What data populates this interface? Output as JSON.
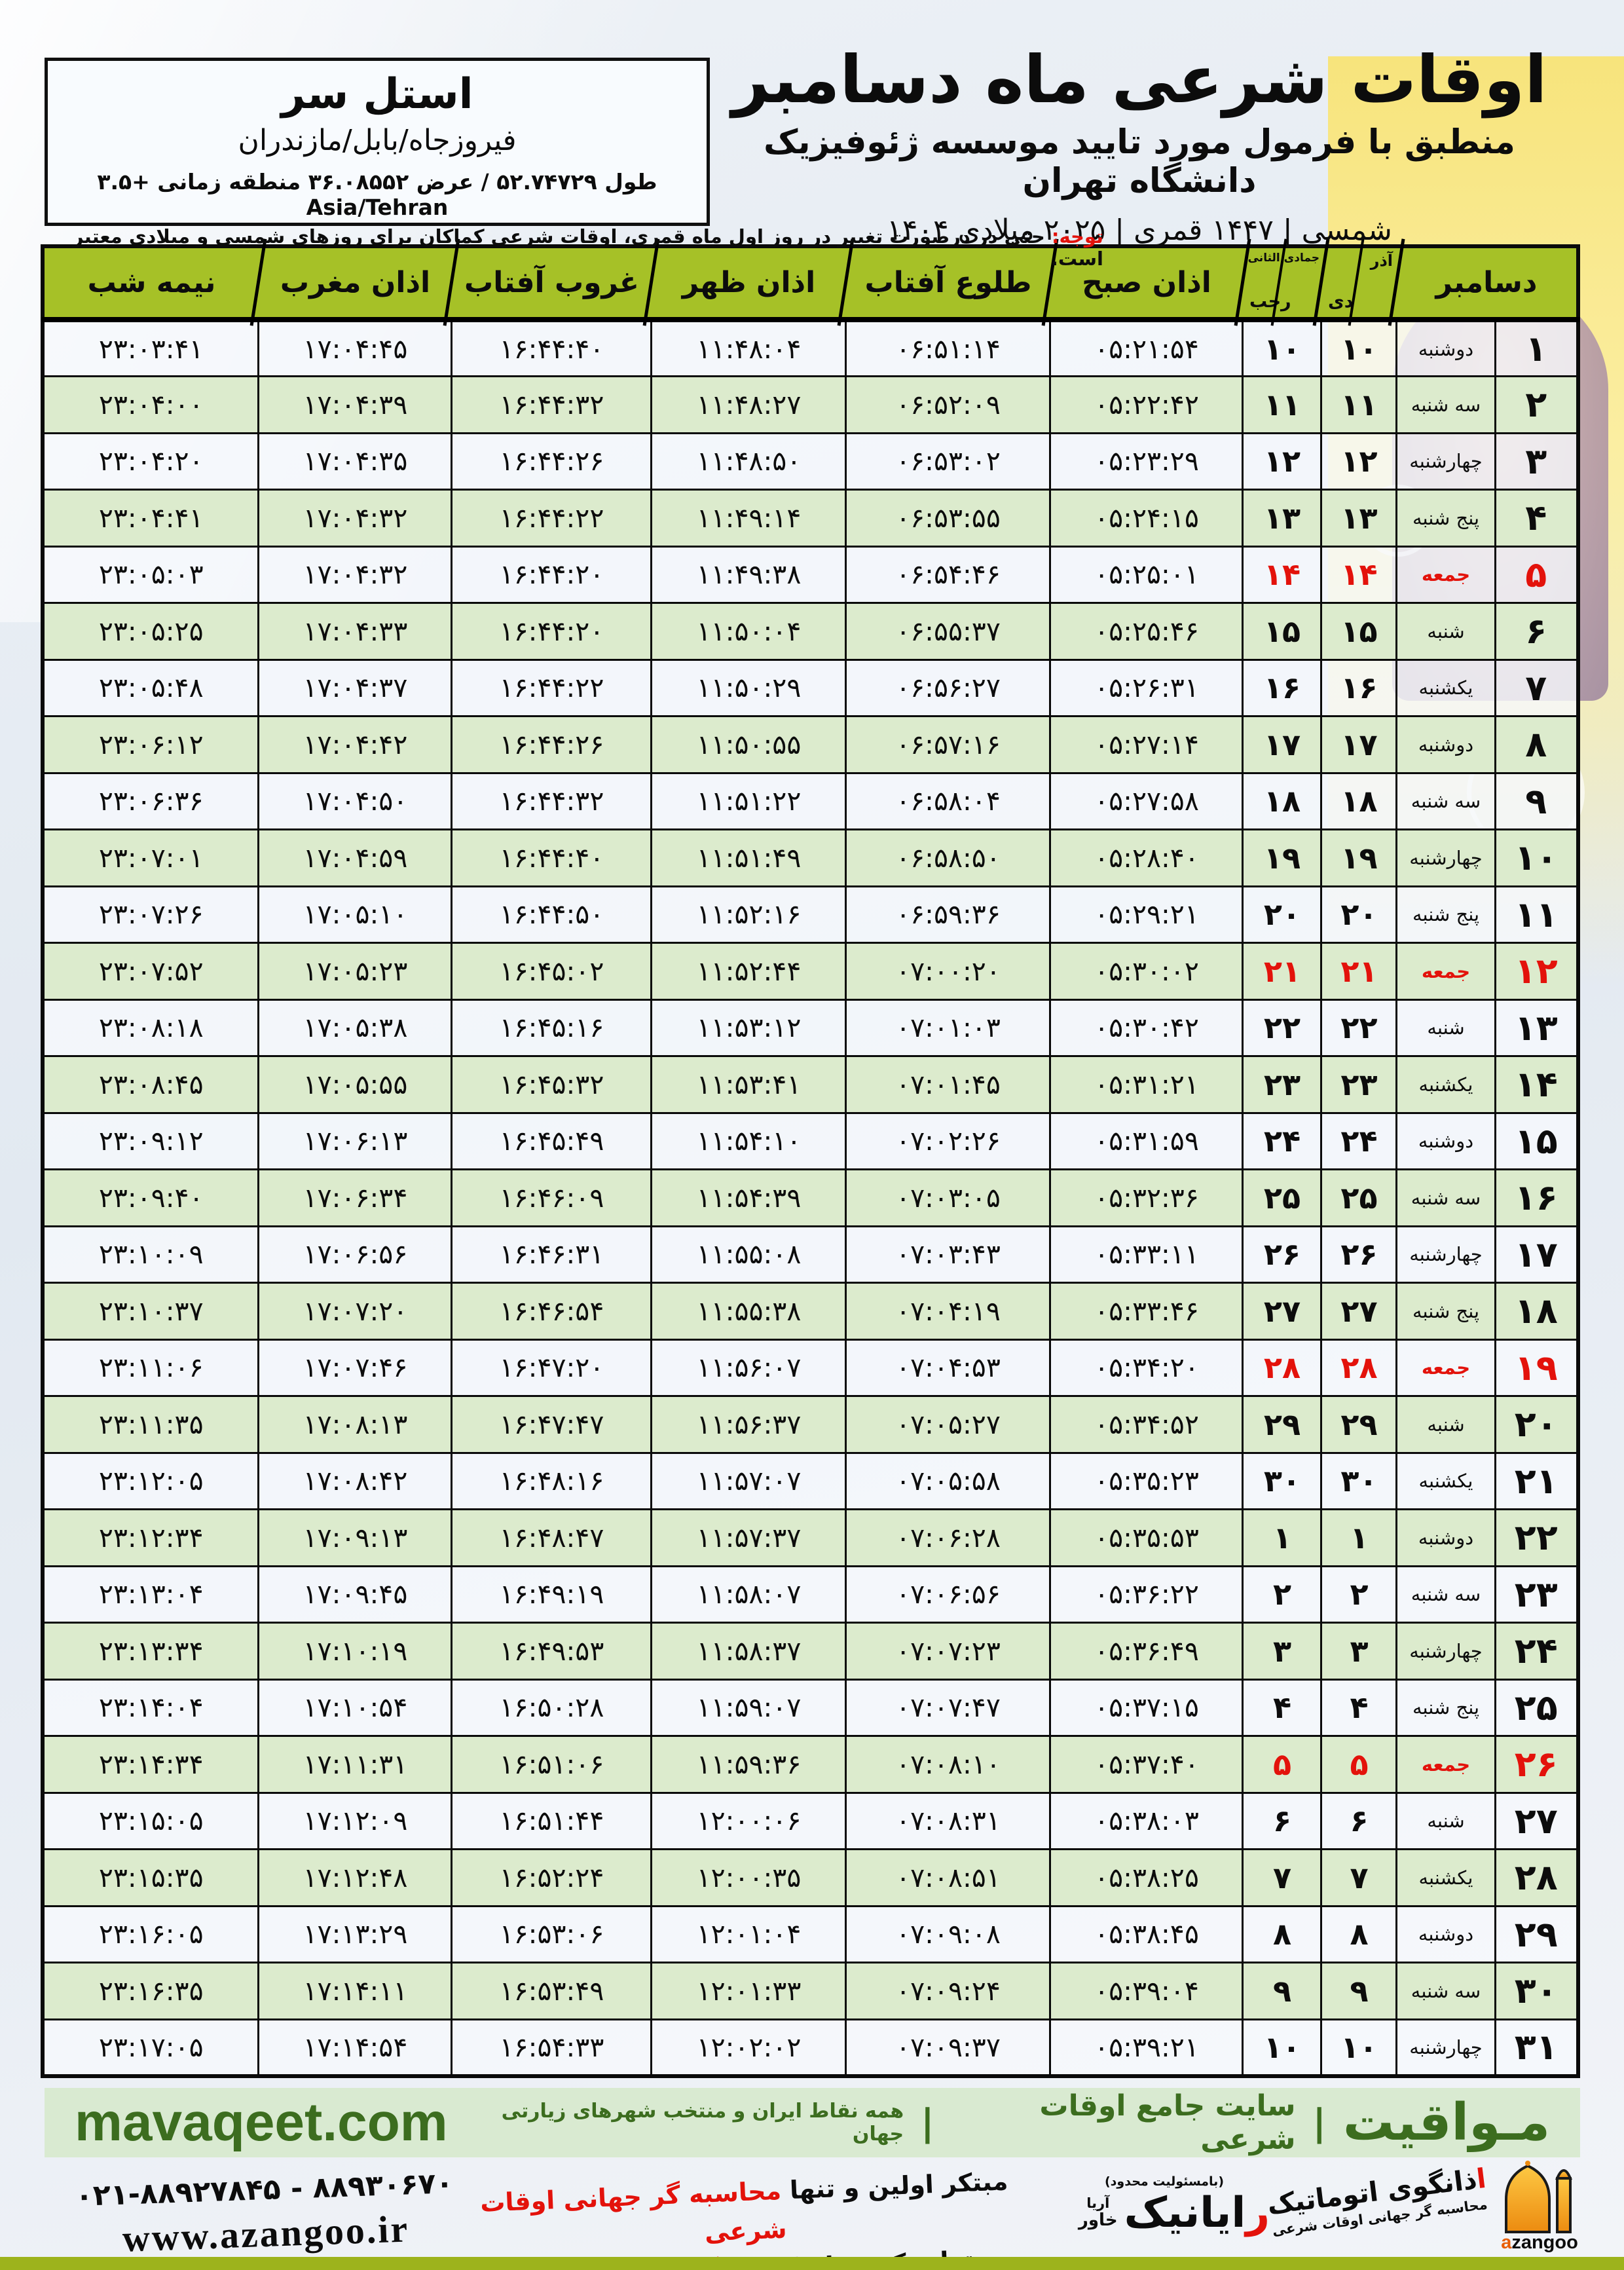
{
  "colors": {
    "accent_green": "#a6c127",
    "row_green": "#dcebcd",
    "red": "#e3120b",
    "footer_bar": "#9db31c",
    "mavaqeet_bg": "#d9ead1",
    "mavaqeet_green": "#3c6d1f",
    "azangoo_orange": "#f39c1f"
  },
  "location": {
    "name": "استل سر",
    "region": "فیروزجاه/بابل/مازندران",
    "coords": "طول ۵۲.۷۴۷۲۹ / عرض ۳۶.۰۸۵۵۲ منطقه زمانی +۳.۵ Asia/Tehran"
  },
  "header": {
    "title": "اوقات شرعی ماه دسامبر",
    "subtitle": "منطبق با فرمول مورد تایید موسسه ژئوفیزیک دانشگاه تهران",
    "years": "۱۴۰۴ شمسی | ۱۴۴۷ قمری | ۲۰۲۵ میلادی"
  },
  "notice": {
    "label": "توجه:",
    "text": " حتی در درصورت تغییر در روز اول ماه قمری، اوقات شرعی کماکان برای روزهای شمسی و میلادی معتبر است."
  },
  "table": {
    "columns": {
      "month": "دسامبر",
      "solar_top": "آذر",
      "solar_bottom": "دی",
      "lunar_top": "جمادی الثانی",
      "lunar_bottom": "رجب",
      "fajr": "اذان صبح",
      "sunrise": "طلوع آفتاب",
      "noon": "اذان ظهر",
      "sunset": "غروب آفتاب",
      "maghrib": "اذان مغرب",
      "midnight": "نیمه شب"
    },
    "rows": [
      {
        "day": "۱",
        "weekday": "دوشنبه",
        "solar": "۱۰",
        "lunar": "۱۰",
        "fajr": "۰۵:۲۱:۵۴",
        "sunrise": "۰۶:۵۱:۱۴",
        "noon": "۱۱:۴۸:۰۴",
        "sunset": "۱۶:۴۴:۴۰",
        "maghrib": "۱۷:۰۴:۴۵",
        "midnight": "۲۳:۰۳:۴۱",
        "friday": false
      },
      {
        "day": "۲",
        "weekday": "سه شنبه",
        "solar": "۱۱",
        "lunar": "۱۱",
        "fajr": "۰۵:۲۲:۴۲",
        "sunrise": "۰۶:۵۲:۰۹",
        "noon": "۱۱:۴۸:۲۷",
        "sunset": "۱۶:۴۴:۳۲",
        "maghrib": "۱۷:۰۴:۳۹",
        "midnight": "۲۳:۰۴:۰۰",
        "friday": false
      },
      {
        "day": "۳",
        "weekday": "چهارشنبه",
        "solar": "۱۲",
        "lunar": "۱۲",
        "fajr": "۰۵:۲۳:۲۹",
        "sunrise": "۰۶:۵۳:۰۲",
        "noon": "۱۱:۴۸:۵۰",
        "sunset": "۱۶:۴۴:۲۶",
        "maghrib": "۱۷:۰۴:۳۵",
        "midnight": "۲۳:۰۴:۲۰",
        "friday": false
      },
      {
        "day": "۴",
        "weekday": "پنج شنبه",
        "solar": "۱۳",
        "lunar": "۱۳",
        "fajr": "۰۵:۲۴:۱۵",
        "sunrise": "۰۶:۵۳:۵۵",
        "noon": "۱۱:۴۹:۱۴",
        "sunset": "۱۶:۴۴:۲۲",
        "maghrib": "۱۷:۰۴:۳۲",
        "midnight": "۲۳:۰۴:۴۱",
        "friday": false
      },
      {
        "day": "۵",
        "weekday": "جمعه",
        "solar": "۱۴",
        "lunar": "۱۴",
        "fajr": "۰۵:۲۵:۰۱",
        "sunrise": "۰۶:۵۴:۴۶",
        "noon": "۱۱:۴۹:۳۸",
        "sunset": "۱۶:۴۴:۲۰",
        "maghrib": "۱۷:۰۴:۳۲",
        "midnight": "۲۳:۰۵:۰۳",
        "friday": true
      },
      {
        "day": "۶",
        "weekday": "شنبه",
        "solar": "۱۵",
        "lunar": "۱۵",
        "fajr": "۰۵:۲۵:۴۶",
        "sunrise": "۰۶:۵۵:۳۷",
        "noon": "۱۱:۵۰:۰۴",
        "sunset": "۱۶:۴۴:۲۰",
        "maghrib": "۱۷:۰۴:۳۳",
        "midnight": "۲۳:۰۵:۲۵",
        "friday": false
      },
      {
        "day": "۷",
        "weekday": "یکشنبه",
        "solar": "۱۶",
        "lunar": "۱۶",
        "fajr": "۰۵:۲۶:۳۱",
        "sunrise": "۰۶:۵۶:۲۷",
        "noon": "۱۱:۵۰:۲۹",
        "sunset": "۱۶:۴۴:۲۲",
        "maghrib": "۱۷:۰۴:۳۷",
        "midnight": "۲۳:۰۵:۴۸",
        "friday": false
      },
      {
        "day": "۸",
        "weekday": "دوشنبه",
        "solar": "۱۷",
        "lunar": "۱۷",
        "fajr": "۰۵:۲۷:۱۴",
        "sunrise": "۰۶:۵۷:۱۶",
        "noon": "۱۱:۵۰:۵۵",
        "sunset": "۱۶:۴۴:۲۶",
        "maghrib": "۱۷:۰۴:۴۲",
        "midnight": "۲۳:۰۶:۱۲",
        "friday": false
      },
      {
        "day": "۹",
        "weekday": "سه شنبه",
        "solar": "۱۸",
        "lunar": "۱۸",
        "fajr": "۰۵:۲۷:۵۸",
        "sunrise": "۰۶:۵۸:۰۴",
        "noon": "۱۱:۵۱:۲۲",
        "sunset": "۱۶:۴۴:۳۲",
        "maghrib": "۱۷:۰۴:۵۰",
        "midnight": "۲۳:۰۶:۳۶",
        "friday": false
      },
      {
        "day": "۱۰",
        "weekday": "چهارشنبه",
        "solar": "۱۹",
        "lunar": "۱۹",
        "fajr": "۰۵:۲۸:۴۰",
        "sunrise": "۰۶:۵۸:۵۰",
        "noon": "۱۱:۵۱:۴۹",
        "sunset": "۱۶:۴۴:۴۰",
        "maghrib": "۱۷:۰۴:۵۹",
        "midnight": "۲۳:۰۷:۰۱",
        "friday": false
      },
      {
        "day": "۱۱",
        "weekday": "پنج شنبه",
        "solar": "۲۰",
        "lunar": "۲۰",
        "fajr": "۰۵:۲۹:۲۱",
        "sunrise": "۰۶:۵۹:۳۶",
        "noon": "۱۱:۵۲:۱۶",
        "sunset": "۱۶:۴۴:۵۰",
        "maghrib": "۱۷:۰۵:۱۰",
        "midnight": "۲۳:۰۷:۲۶",
        "friday": false
      },
      {
        "day": "۱۲",
        "weekday": "جمعه",
        "solar": "۲۱",
        "lunar": "۲۱",
        "fajr": "۰۵:۳۰:۰۲",
        "sunrise": "۰۷:۰۰:۲۰",
        "noon": "۱۱:۵۲:۴۴",
        "sunset": "۱۶:۴۵:۰۲",
        "maghrib": "۱۷:۰۵:۲۳",
        "midnight": "۲۳:۰۷:۵۲",
        "friday": true
      },
      {
        "day": "۱۳",
        "weekday": "شنبه",
        "solar": "۲۲",
        "lunar": "۲۲",
        "fajr": "۰۵:۳۰:۴۲",
        "sunrise": "۰۷:۰۱:۰۳",
        "noon": "۱۱:۵۳:۱۲",
        "sunset": "۱۶:۴۵:۱۶",
        "maghrib": "۱۷:۰۵:۳۸",
        "midnight": "۲۳:۰۸:۱۸",
        "friday": false
      },
      {
        "day": "۱۴",
        "weekday": "یکشنبه",
        "solar": "۲۳",
        "lunar": "۲۳",
        "fajr": "۰۵:۳۱:۲۱",
        "sunrise": "۰۷:۰۱:۴۵",
        "noon": "۱۱:۵۳:۴۱",
        "sunset": "۱۶:۴۵:۳۲",
        "maghrib": "۱۷:۰۵:۵۵",
        "midnight": "۲۳:۰۸:۴۵",
        "friday": false
      },
      {
        "day": "۱۵",
        "weekday": "دوشنبه",
        "solar": "۲۴",
        "lunar": "۲۴",
        "fajr": "۰۵:۳۱:۵۹",
        "sunrise": "۰۷:۰۲:۲۶",
        "noon": "۱۱:۵۴:۱۰",
        "sunset": "۱۶:۴۵:۴۹",
        "maghrib": "۱۷:۰۶:۱۳",
        "midnight": "۲۳:۰۹:۱۲",
        "friday": false
      },
      {
        "day": "۱۶",
        "weekday": "سه شنبه",
        "solar": "۲۵",
        "lunar": "۲۵",
        "fajr": "۰۵:۳۲:۳۶",
        "sunrise": "۰۷:۰۳:۰۵",
        "noon": "۱۱:۵۴:۳۹",
        "sunset": "۱۶:۴۶:۰۹",
        "maghrib": "۱۷:۰۶:۳۴",
        "midnight": "۲۳:۰۹:۴۰",
        "friday": false
      },
      {
        "day": "۱۷",
        "weekday": "چهارشنبه",
        "solar": "۲۶",
        "lunar": "۲۶",
        "fajr": "۰۵:۳۳:۱۱",
        "sunrise": "۰۷:۰۳:۴۳",
        "noon": "۱۱:۵۵:۰۸",
        "sunset": "۱۶:۴۶:۳۱",
        "maghrib": "۱۷:۰۶:۵۶",
        "midnight": "۲۳:۱۰:۰۹",
        "friday": false
      },
      {
        "day": "۱۸",
        "weekday": "پنج شنبه",
        "solar": "۲۷",
        "lunar": "۲۷",
        "fajr": "۰۵:۳۳:۴۶",
        "sunrise": "۰۷:۰۴:۱۹",
        "noon": "۱۱:۵۵:۳۸",
        "sunset": "۱۶:۴۶:۵۴",
        "maghrib": "۱۷:۰۷:۲۰",
        "midnight": "۲۳:۱۰:۳۷",
        "friday": false
      },
      {
        "day": "۱۹",
        "weekday": "جمعه",
        "solar": "۲۸",
        "lunar": "۲۸",
        "fajr": "۰۵:۳۴:۲۰",
        "sunrise": "۰۷:۰۴:۵۳",
        "noon": "۱۱:۵۶:۰۷",
        "sunset": "۱۶:۴۷:۲۰",
        "maghrib": "۱۷:۰۷:۴۶",
        "midnight": "۲۳:۱۱:۰۶",
        "friday": true
      },
      {
        "day": "۲۰",
        "weekday": "شنبه",
        "solar": "۲۹",
        "lunar": "۲۹",
        "fajr": "۰۵:۳۴:۵۲",
        "sunrise": "۰۷:۰۵:۲۷",
        "noon": "۱۱:۵۶:۳۷",
        "sunset": "۱۶:۴۷:۴۷",
        "maghrib": "۱۷:۰۸:۱۳",
        "midnight": "۲۳:۱۱:۳۵",
        "friday": false
      },
      {
        "day": "۲۱",
        "weekday": "یکشنبه",
        "solar": "۳۰",
        "lunar": "۳۰",
        "fajr": "۰۵:۳۵:۲۳",
        "sunrise": "۰۷:۰۵:۵۸",
        "noon": "۱۱:۵۷:۰۷",
        "sunset": "۱۶:۴۸:۱۶",
        "maghrib": "۱۷:۰۸:۴۲",
        "midnight": "۲۳:۱۲:۰۵",
        "friday": false
      },
      {
        "day": "۲۲",
        "weekday": "دوشنبه",
        "solar": "۱",
        "lunar": "۱",
        "fajr": "۰۵:۳۵:۵۳",
        "sunrise": "۰۷:۰۶:۲۸",
        "noon": "۱۱:۵۷:۳۷",
        "sunset": "۱۶:۴۸:۴۷",
        "maghrib": "۱۷:۰۹:۱۳",
        "midnight": "۲۳:۱۲:۳۴",
        "friday": false
      },
      {
        "day": "۲۳",
        "weekday": "سه شنبه",
        "solar": "۲",
        "lunar": "۲",
        "fajr": "۰۵:۳۶:۲۲",
        "sunrise": "۰۷:۰۶:۵۶",
        "noon": "۱۱:۵۸:۰۷",
        "sunset": "۱۶:۴۹:۱۹",
        "maghrib": "۱۷:۰۹:۴۵",
        "midnight": "۲۳:۱۳:۰۴",
        "friday": false
      },
      {
        "day": "۲۴",
        "weekday": "چهارشنبه",
        "solar": "۳",
        "lunar": "۳",
        "fajr": "۰۵:۳۶:۴۹",
        "sunrise": "۰۷:۰۷:۲۳",
        "noon": "۱۱:۵۸:۳۷",
        "sunset": "۱۶:۴۹:۵۳",
        "maghrib": "۱۷:۱۰:۱۹",
        "midnight": "۲۳:۱۳:۳۴",
        "friday": false
      },
      {
        "day": "۲۵",
        "weekday": "پنج شنبه",
        "solar": "۴",
        "lunar": "۴",
        "fajr": "۰۵:۳۷:۱۵",
        "sunrise": "۰۷:۰۷:۴۷",
        "noon": "۱۱:۵۹:۰۷",
        "sunset": "۱۶:۵۰:۲۸",
        "maghrib": "۱۷:۱۰:۵۴",
        "midnight": "۲۳:۱۴:۰۴",
        "friday": false
      },
      {
        "day": "۲۶",
        "weekday": "جمعه",
        "solar": "۵",
        "lunar": "۵",
        "fajr": "۰۵:۳۷:۴۰",
        "sunrise": "۰۷:۰۸:۱۰",
        "noon": "۱۱:۵۹:۳۶",
        "sunset": "۱۶:۵۱:۰۶",
        "maghrib": "۱۷:۱۱:۳۱",
        "midnight": "۲۳:۱۴:۳۴",
        "friday": true
      },
      {
        "day": "۲۷",
        "weekday": "شنبه",
        "solar": "۶",
        "lunar": "۶",
        "fajr": "۰۵:۳۸:۰۳",
        "sunrise": "۰۷:۰۸:۳۱",
        "noon": "۱۲:۰۰:۰۶",
        "sunset": "۱۶:۵۱:۴۴",
        "maghrib": "۱۷:۱۲:۰۹",
        "midnight": "۲۳:۱۵:۰۵",
        "friday": false
      },
      {
        "day": "۲۸",
        "weekday": "یکشنبه",
        "solar": "۷",
        "lunar": "۷",
        "fajr": "۰۵:۳۸:۲۵",
        "sunrise": "۰۷:۰۸:۵۱",
        "noon": "۱۲:۰۰:۳۵",
        "sunset": "۱۶:۵۲:۲۴",
        "maghrib": "۱۷:۱۲:۴۸",
        "midnight": "۲۳:۱۵:۳۵",
        "friday": false
      },
      {
        "day": "۲۹",
        "weekday": "دوشنبه",
        "solar": "۸",
        "lunar": "۸",
        "fajr": "۰۵:۳۸:۴۵",
        "sunrise": "۰۷:۰۹:۰۸",
        "noon": "۱۲:۰۱:۰۴",
        "sunset": "۱۶:۵۳:۰۶",
        "maghrib": "۱۷:۱۳:۲۹",
        "midnight": "۲۳:۱۶:۰۵",
        "friday": false
      },
      {
        "day": "۳۰",
        "weekday": "سه شنبه",
        "solar": "۹",
        "lunar": "۹",
        "fajr": "۰۵:۳۹:۰۴",
        "sunrise": "۰۷:۰۹:۲۴",
        "noon": "۱۲:۰۱:۳۳",
        "sunset": "۱۶:۵۳:۴۹",
        "maghrib": "۱۷:۱۴:۱۱",
        "midnight": "۲۳:۱۶:۳۵",
        "friday": false
      },
      {
        "day": "۳۱",
        "weekday": "چهارشنبه",
        "solar": "۱۰",
        "lunar": "۱۰",
        "fajr": "۰۵:۳۹:۲۱",
        "sunrise": "۰۷:۰۹:۳۷",
        "noon": "۱۲:۰۲:۰۲",
        "sunset": "۱۶:۵۴:۳۳",
        "maghrib": "۱۷:۱۴:۵۴",
        "midnight": "۲۳:۱۷:۰۵",
        "friday": false
      }
    ]
  },
  "mavaqeet": {
    "brand": "مـواقیت",
    "sep1": "|",
    "tag1": "سایت جامع اوقات شرعی",
    "sep2": "|",
    "tag2": "همه نقاط ایران و منتخب شهرهای زیارتی جهان",
    "domain": "mavaqeet.com"
  },
  "footer": {
    "phones": "۰۲۱-۸۸۹۲۷۸۴۵ - ۸۸۹۳۰۶۷۰",
    "website": "www.azangoo.ir",
    "slogan_line1_black": "مبتکر اولین و تنها ",
    "slogan_line1_red": "محاسبه گر جهانی اوقات شرعی",
    "slogan_line2_black": "و تولید کننده انواع ",
    "slogan_line2_red": "دستگاه اذان گوی تمام خودکار ماهواره ای",
    "rayanik_llc": "(بامسئولیت محدود)",
    "rayanik_first": "ر",
    "rayanik_rest": "ایانیک",
    "rayanik_sub1": "آریا",
    "rayanik_sub2": "خاور",
    "azangoo_first": "ا",
    "azangoo_rest": "ذانگوی اتوماتیک",
    "azangoo_sub": "محاسبه گر جهانی اوقات شرعی",
    "azangoo_latin_a": "a",
    "azangoo_latin_rest": "zangoo"
  }
}
